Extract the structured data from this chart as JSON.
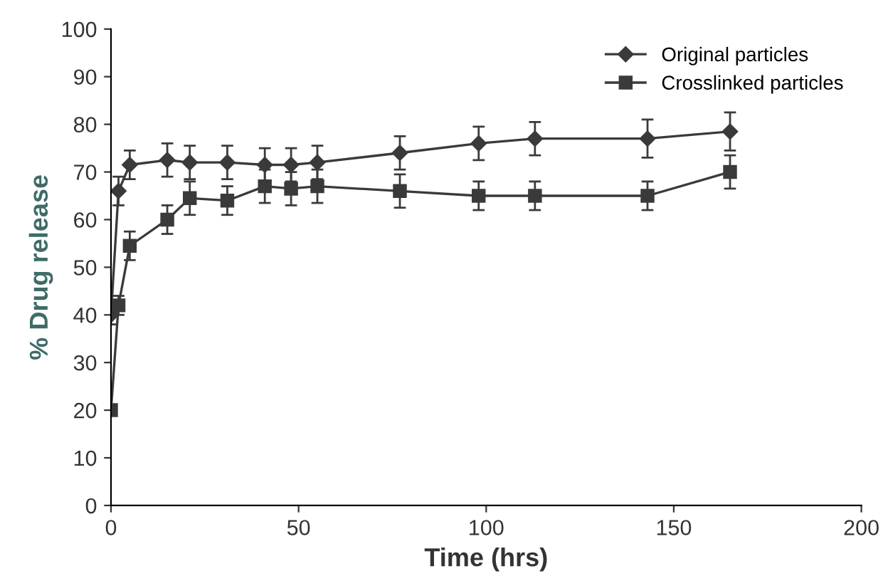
{
  "chart_data": {
    "type": "line",
    "xlabel": "Time (hrs)",
    "ylabel": "% Drug release",
    "xlim": [
      0,
      200
    ],
    "ylim": [
      0,
      100
    ],
    "xticks": [
      0,
      50,
      100,
      150,
      200
    ],
    "yticks": [
      0,
      10,
      20,
      30,
      40,
      50,
      60,
      70,
      80,
      90,
      100
    ],
    "grid": false,
    "legend": "top right",
    "series": [
      {
        "name": "Original particles",
        "color": "#3a3a3a",
        "marker": "diamond",
        "x": [
          0,
          2,
          5,
          15,
          21,
          31,
          41,
          48,
          55,
          77,
          98,
          113,
          143,
          165
        ],
        "values": [
          40,
          66,
          71.5,
          72.5,
          72,
          72,
          71.5,
          71.5,
          72,
          74,
          76,
          77,
          77,
          78.5
        ],
        "errors": [
          2,
          3,
          3,
          3.5,
          3.5,
          3.5,
          3.5,
          3.5,
          3.5,
          3.5,
          3.5,
          3.5,
          4,
          4
        ]
      },
      {
        "name": "Crosslinked particles",
        "color": "#3a3a3a",
        "marker": "square",
        "x": [
          0,
          2,
          5,
          15,
          21,
          31,
          41,
          48,
          55,
          77,
          98,
          113,
          143,
          165
        ],
        "values": [
          20,
          42,
          54.5,
          60,
          64.5,
          64,
          67,
          66.5,
          67,
          66,
          65,
          65,
          65,
          70
        ],
        "errors": [
          1,
          2,
          3,
          3,
          3.5,
          3,
          3.5,
          3.5,
          3.5,
          3.5,
          3,
          3,
          3,
          3.5
        ]
      }
    ]
  }
}
